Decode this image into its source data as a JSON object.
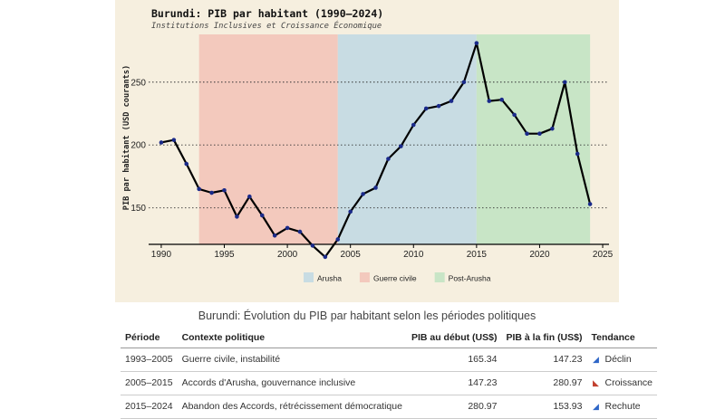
{
  "chart_data": {
    "type": "line",
    "title": "Burundi: PIB par habitant (1990–2024)",
    "subtitle": "Institutions Inclusives et Croissance Économique",
    "xlabel": "",
    "ylabel": "PIB par habitant (USD courants)",
    "xlim": [
      1989,
      2025.5
    ],
    "ylim": [
      121,
      293
    ],
    "x_ticks": [
      1990,
      1995,
      2000,
      2005,
      2010,
      2015,
      2020,
      2025
    ],
    "y_ticks": [
      150,
      200,
      250
    ],
    "grid": "horizontal dotted",
    "x": [
      1990,
      1991,
      1992,
      1993,
      1994,
      1995,
      1996,
      1997,
      1998,
      1999,
      2000,
      2001,
      2002,
      2003,
      2004,
      2005,
      2006,
      2007,
      2008,
      2009,
      2010,
      2011,
      2012,
      2013,
      2014,
      2015,
      2016,
      2017,
      2018,
      2019,
      2020,
      2021,
      2022,
      2023,
      2024
    ],
    "series": [
      {
        "values": [
          202,
          204,
          185,
          165,
          162,
          164,
          143,
          159,
          144,
          128,
          134,
          131,
          120,
          111,
          125,
          147,
          161,
          166,
          189,
          199,
          216,
          229,
          231,
          235,
          250,
          281,
          235,
          236,
          224,
          209,
          209,
          213,
          250,
          193,
          153
        ],
        "color": "#000000",
        "marker_color": "#1a2a8a"
      }
    ],
    "periods": [
      {
        "name": "Guerre civile",
        "start": 1993,
        "end": 2004,
        "color": "#f3c9bd"
      },
      {
        "name": "Arusha",
        "start": 2004,
        "end": 2015,
        "color": "#c8dce3"
      },
      {
        "name": "Post-Arusha",
        "start": 2015,
        "end": 2024,
        "color": "#c8e5c6"
      }
    ],
    "legend": {
      "position": "bottom",
      "entries": [
        {
          "label": "Arusha",
          "color": "#c8dce3"
        },
        {
          "label": "Guerre civile",
          "color": "#f3c9bd"
        },
        {
          "label": "Post-Arusha",
          "color": "#c8e5c6"
        }
      ]
    }
  },
  "table": {
    "title": "Burundi: Évolution du PIB par habitant selon les périodes politiques",
    "headers": {
      "periode": "Période",
      "contexte": "Contexte politique",
      "debut": "PIB au début (US$)",
      "fin": "PIB à la fin (US$)",
      "tendance": "Tendance"
    },
    "rows": [
      {
        "periode": "1993–2005",
        "contexte": "Guerre civile, instabilité",
        "debut": "165.34",
        "fin": "147.23",
        "tendance": "Déclin",
        "icon": "chart-decreasing-icon"
      },
      {
        "periode": "2005–2015",
        "contexte": "Accords d'Arusha, gouvernance inclusive",
        "debut": "147.23",
        "fin": "280.97",
        "tendance": "Croissance",
        "icon": "chart-increasing-icon"
      },
      {
        "periode": "2015–2024",
        "contexte": "Abandon des Accords, rétrécissement démocratique",
        "debut": "280.97",
        "fin": "153.93",
        "tendance": "Rechute",
        "icon": "chart-decreasing-icon"
      }
    ]
  }
}
